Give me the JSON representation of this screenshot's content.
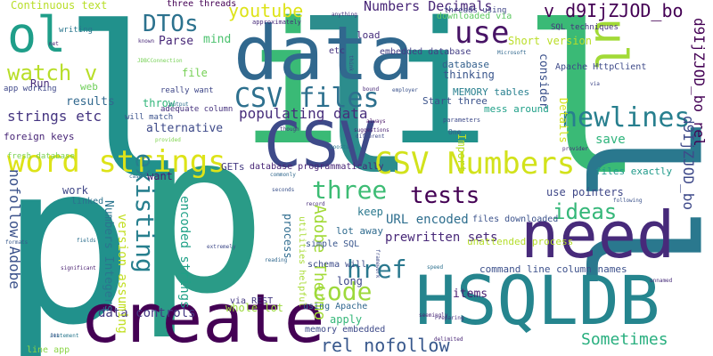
{
  "words": [
    {
      "text": "p",
      "color": "#21918c"
    },
    {
      "text": "p",
      "color": "#2a9b87"
    },
    {
      "text": "l",
      "color": "#21918c"
    },
    {
      "text": "l",
      "color": "#2c8d8d"
    },
    {
      "text": "l",
      "color": "#3aba76"
    },
    {
      "text": "i",
      "color": "#3aba76"
    },
    {
      "text": "i",
      "color": "#21918c"
    },
    {
      "text": "ll",
      "color": "#2a788e"
    },
    {
      "text": "data",
      "color": "#31688e"
    },
    {
      "text": "CSV",
      "color": "#3e4a89"
    },
    {
      "text": "HSQLDB",
      "color": "#25858e"
    },
    {
      "text": "create",
      "color": "#440154"
    },
    {
      "text": "need",
      "color": "#472a7a"
    },
    {
      "text": "word strings",
      "color": "#dde318"
    },
    {
      "text": "CSV Numbers",
      "color": "#d2e21b"
    },
    {
      "text": "CSV files",
      "color": "#2d708e"
    },
    {
      "text": "ol",
      "color": "#1f9e89"
    },
    {
      "text": "ul",
      "color": "#a2da37"
    },
    {
      "text": "use",
      "color": "#471365"
    },
    {
      "text": "code",
      "color": "#9dd93b"
    },
    {
      "text": "existing",
      "color": "#277f8e"
    },
    {
      "text": "href",
      "color": "#2a788e"
    },
    {
      "text": "three",
      "color": "#3dbc74"
    },
    {
      "text": "tests",
      "color": "#440154"
    },
    {
      "text": "ideas",
      "color": "#35b779"
    },
    {
      "text": "newlines",
      "color": "#277f8e"
    },
    {
      "text": "watch v",
      "color": "#b8de29"
    },
    {
      "text": "DTOs",
      "color": "#2c728e"
    },
    {
      "text": "youtube",
      "color": "#dde318"
    },
    {
      "text": "rel nofollow",
      "color": "#38588c"
    },
    {
      "text": "Sometimes",
      "color": "#29af7f"
    },
    {
      "text": "populating data",
      "color": "#472d7b"
    },
    {
      "text": "strings etc",
      "color": "#453581"
    },
    {
      "text": "nofollow Adobe",
      "color": "#3b528b"
    },
    {
      "text": "Adobe Thermo",
      "color": "#a2da37"
    },
    {
      "text": "d9IjZJOD_bo rel",
      "color": "#440154"
    },
    {
      "text": "d9IjZJOD_bo",
      "color": "#3e4989"
    },
    {
      "text": "v d9IjZJOD_bo",
      "color": "#440154"
    },
    {
      "text": "Numbers Decimals",
      "color": "#482677"
    },
    {
      "text": "prewritten sets",
      "color": "#482878"
    },
    {
      "text": "URL encoded",
      "color": "#2e6e8e"
    },
    {
      "text": "data controls",
      "color": "#443983"
    },
    {
      "text": "Continuous text",
      "color": "#b8de29"
    },
    {
      "text": "three threads",
      "color": "#440154"
    },
    {
      "text": "Numbers Integers",
      "color": "#2b758e"
    },
    {
      "text": "encoded strings",
      "color": "#1fa187"
    },
    {
      "text": "version assuming",
      "color": "#c2df23"
    },
    {
      "text": "process",
      "color": "#2f6c8e"
    },
    {
      "text": "utilities helpful",
      "color": "#a8db34"
    },
    {
      "text": "Parse",
      "color": "#482878"
    },
    {
      "text": "mind",
      "color": "#4ac16d"
    },
    {
      "text": "file",
      "color": "#75d054"
    },
    {
      "text": "Run",
      "color": "#472c7a"
    },
    {
      "text": "results",
      "color": "#31688e"
    },
    {
      "text": "throw",
      "color": "#32b67a"
    },
    {
      "text": "alternative",
      "color": "#3e4a89"
    },
    {
      "text": "foreign keys",
      "color": "#482677"
    },
    {
      "text": "fresh database",
      "color": "#7ad151"
    },
    {
      "text": "work",
      "color": "#3f4788"
    },
    {
      "text": "linked",
      "color": "#2c728e"
    },
    {
      "text": "GETs",
      "color": "#443a83"
    },
    {
      "text": "want",
      "color": "#482071"
    },
    {
      "text": "database programmatically",
      "color": "#482576"
    },
    {
      "text": "files downloaded",
      "color": "#3b528b"
    },
    {
      "text": "use pointers",
      "color": "#3f4788"
    },
    {
      "text": "files exactly",
      "color": "#1f9a8a"
    },
    {
      "text": "save",
      "color": "#2fb47c"
    },
    {
      "text": "unattended process",
      "color": "#b5de2b"
    },
    {
      "text": "keep",
      "color": "#2a788e"
    },
    {
      "text": "lot away",
      "color": "#2f6b8e"
    },
    {
      "text": "long",
      "color": "#3e4989"
    },
    {
      "text": "simple SQL",
      "color": "#39568c"
    },
    {
      "text": "schema will",
      "color": "#3e4c8a"
    },
    {
      "text": "items",
      "color": "#481f70"
    },
    {
      "text": "command line column names",
      "color": "#3c508b"
    },
    {
      "text": "via REST",
      "color": "#443983"
    },
    {
      "text": "whole lot",
      "color": "#9bd93c"
    },
    {
      "text": "using Apache",
      "color": "#31678e"
    },
    {
      "text": "apply",
      "color": "#35b779"
    },
    {
      "text": "memory embedded",
      "color": "#3e4a89"
    },
    {
      "text": "line app",
      "color": "#8bd646"
    },
    {
      "text": "Import",
      "color": "#b8de29"
    },
    {
      "text": "consider",
      "color": "#3b518b"
    },
    {
      "text": "Details",
      "color": "#d2e21b"
    },
    {
      "text": "Short version",
      "color": "#bade28"
    },
    {
      "text": "database",
      "color": "#34608d"
    },
    {
      "text": "thinking",
      "color": "#39558c"
    },
    {
      "text": "MEMORY tables",
      "color": "#277f8e"
    },
    {
      "text": "Start three",
      "color": "#3b528b"
    },
    {
      "text": "mess around",
      "color": "#1fa088"
    },
    {
      "text": "embedded database",
      "color": "#433e85"
    },
    {
      "text": "etc",
      "color": "#46337f"
    },
    {
      "text": "load",
      "color": "#472f7d"
    },
    {
      "text": "Apache HttpClient",
      "color": "#3e4a89"
    },
    {
      "text": "SQL techniques",
      "color": "#46327e"
    },
    {
      "text": "threads using",
      "color": "#404688"
    },
    {
      "text": "downloaded via",
      "color": "#5ec962"
    },
    {
      "text": "writing",
      "color": "#2a778e"
    },
    {
      "text": "app working",
      "color": "#3f4889"
    },
    {
      "text": "web",
      "color": "#6ece58"
    },
    {
      "text": "adequate column",
      "color": "#46327e"
    },
    {
      "text": "really want",
      "color": "#3f4788"
    },
    {
      "text": "will match",
      "color": "#3b528b"
    },
    {
      "text": "One",
      "color": "#39568c"
    },
    {
      "text": "parameters",
      "color": "#3e4a89"
    },
    {
      "text": "approximately",
      "color": "#472a7a"
    },
    {
      "text": "Microsoft",
      "color": "#31688e"
    },
    {
      "text": "JDBCConnection",
      "color": "#75d054"
    },
    {
      "text": "anything",
      "color": "#46307e"
    },
    {
      "text": "known",
      "color": "#482878"
    },
    {
      "text": "employer",
      "color": "#3b528b"
    },
    {
      "text": "output",
      "color": "#2d708e"
    },
    {
      "text": "provided",
      "color": "#7fd34e"
    },
    {
      "text": "always",
      "color": "#481467"
    },
    {
      "text": "different",
      "color": "#3e4a89"
    },
    {
      "text": "suggestions",
      "color": "#482071"
    },
    {
      "text": "boosts",
      "color": "#2a788e"
    },
    {
      "text": "commonly",
      "color": "#31688e"
    },
    {
      "text": "seconds",
      "color": "#3b528b"
    },
    {
      "text": "record",
      "color": "#472c7a"
    },
    {
      "text": "framework",
      "color": "#3e4a89"
    },
    {
      "text": "Preparing",
      "color": "#46307e"
    },
    {
      "text": "provider",
      "color": "#482878"
    },
    {
      "text": "fields",
      "color": "#2d708e"
    },
    {
      "text": "formats",
      "color": "#38598c"
    },
    {
      "text": "significant",
      "color": "#481f70"
    },
    {
      "text": "statement",
      "color": "#2a788e"
    },
    {
      "text": "extremely",
      "color": "#3e4989"
    },
    {
      "text": "reading",
      "color": "#31688e"
    },
    {
      "text": "delimited",
      "color": "#482576"
    },
    {
      "text": "speed",
      "color": "#2d708e"
    },
    {
      "text": "following",
      "color": "#3b528b"
    },
    {
      "text": "unnamed",
      "color": "#472c7a"
    },
    {
      "text": "think",
      "color": "#3e4a89"
    },
    {
      "text": "bound",
      "color": "#482878"
    },
    {
      "text": "though",
      "color": "#46337f"
    },
    {
      "text": "via",
      "color": "#3f4788"
    },
    {
      "text": "case",
      "color": "#31688e"
    },
    {
      "text": "net",
      "color": "#482071"
    },
    {
      "text": "Jet",
      "color": "#3b528b"
    },
    {
      "text": "seemingly",
      "color": "#482576"
    }
  ]
}
